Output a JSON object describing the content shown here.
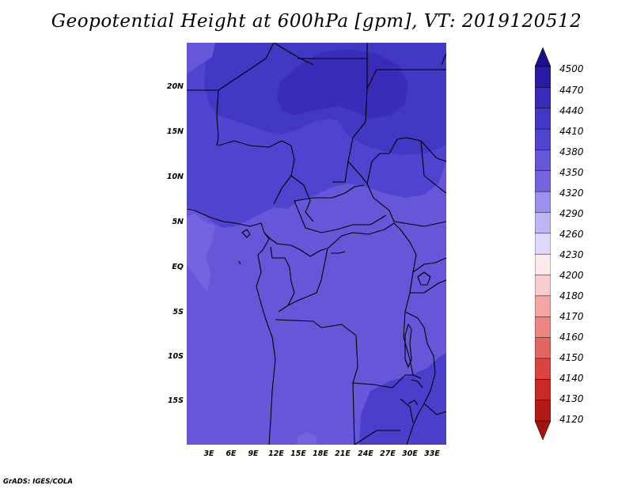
{
  "title": "Geopotential Height at 600hPa [gpm], VT: 2019120512",
  "credit": "GrADS: IGES/COLA",
  "map": {
    "lat_labels": [
      "20N",
      "15N",
      "10N",
      "5N",
      "EQ",
      "5S",
      "10S",
      "15S"
    ],
    "lon_labels": [
      "3E",
      "6E",
      "9E",
      "12E",
      "15E",
      "18E",
      "21E",
      "24E",
      "27E",
      "30E",
      "33E"
    ],
    "region": "Central Africa",
    "field_colors": {
      "c4470": "#3a2cb8",
      "c4440": "#4138c4",
      "c4410": "#5043cf",
      "c4380": "#6557d8",
      "c4350": "#7564e0"
    }
  },
  "colorbar": {
    "labels": [
      "4500",
      "4470",
      "4440",
      "4410",
      "4380",
      "4350",
      "4320",
      "4290",
      "4260",
      "4230",
      "4200",
      "4180",
      "4170",
      "4160",
      "4150",
      "4140",
      "4130",
      "4120"
    ],
    "colors": [
      "#1c0f8a",
      "#2b1aa3",
      "#3a2cb8",
      "#4138c4",
      "#5043cf",
      "#6557d8",
      "#7564e0",
      "#9a90ee",
      "#bdb6f5",
      "#dcd9fb",
      "#fbe9ec",
      "#f8cbcc",
      "#f3a7a4",
      "#ec8680",
      "#e46460",
      "#da4440",
      "#c92a26",
      "#b21a18",
      "#a11412"
    ]
  }
}
